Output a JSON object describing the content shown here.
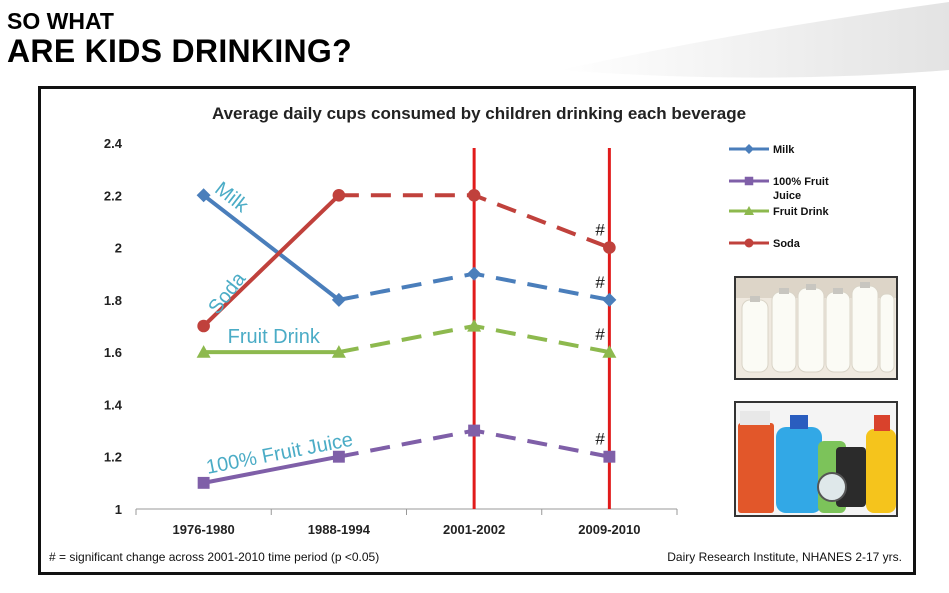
{
  "slide": {
    "title_line1": "SO WHAT",
    "title_line2": "ARE KIDS DRINKING?"
  },
  "chart_data": {
    "type": "line",
    "title": "Average daily cups consumed by children drinking each beverage",
    "xlabel": "",
    "ylabel": "",
    "categories": [
      "1976-1980",
      "1988-1994",
      "2001-2002",
      "2009-2010"
    ],
    "ylim": [
      1,
      2.4
    ],
    "yticks": [
      1,
      1.2,
      1.4,
      1.6,
      1.8,
      2,
      2.2,
      2.4
    ],
    "ytick_labels": [
      "1",
      "1.2",
      "1.4",
      "1.6",
      "1.8",
      "2",
      "2.2",
      "2.4"
    ],
    "series": [
      {
        "name": "Milk",
        "legend_lines": [
          "Milk"
        ],
        "inline_label": "Milk",
        "color": "#4a7ebb",
        "marker": "diamond",
        "values": [
          2.2,
          1.8,
          1.9,
          1.8
        ]
      },
      {
        "name": "100% Fruit Juice",
        "legend_lines": [
          "100% Fruit",
          "Juice"
        ],
        "inline_label": "100% Fruit Juice",
        "color": "#7f5fa8",
        "marker": "square",
        "values": [
          1.1,
          1.2,
          1.3,
          1.2
        ]
      },
      {
        "name": "Fruit Drink",
        "legend_lines": [
          "Fruit Drink"
        ],
        "inline_label": "Fruit Drink",
        "color": "#8db94e",
        "marker": "triangle",
        "values": [
          1.6,
          1.6,
          1.7,
          1.6
        ]
      },
      {
        "name": "Soda",
        "legend_lines": [
          "Soda"
        ],
        "inline_label": "Soda",
        "color": "#c0413c",
        "marker": "circle",
        "values": [
          1.7,
          2.2,
          2.2,
          2.0
        ]
      }
    ],
    "inline_label_color": "#4bacc6",
    "reference_lines": {
      "categories": [
        "2001-2002",
        "2009-2010"
      ],
      "color": "#e11b1b"
    },
    "significance_marks": [
      {
        "category": "2009-2010",
        "series": "Soda",
        "symbol": "#"
      },
      {
        "category": "2009-2010",
        "series": "Milk",
        "symbol": "#"
      },
      {
        "category": "2009-2010",
        "series": "Fruit Drink",
        "symbol": "#"
      },
      {
        "category": "2009-2010",
        "series": "100% Fruit Juice",
        "symbol": "#"
      }
    ],
    "footnote": "# = significant change across 2001-2010 time period (p <0.05)",
    "source": "Dairy Research Institute, NHANES 2-17 yrs."
  }
}
